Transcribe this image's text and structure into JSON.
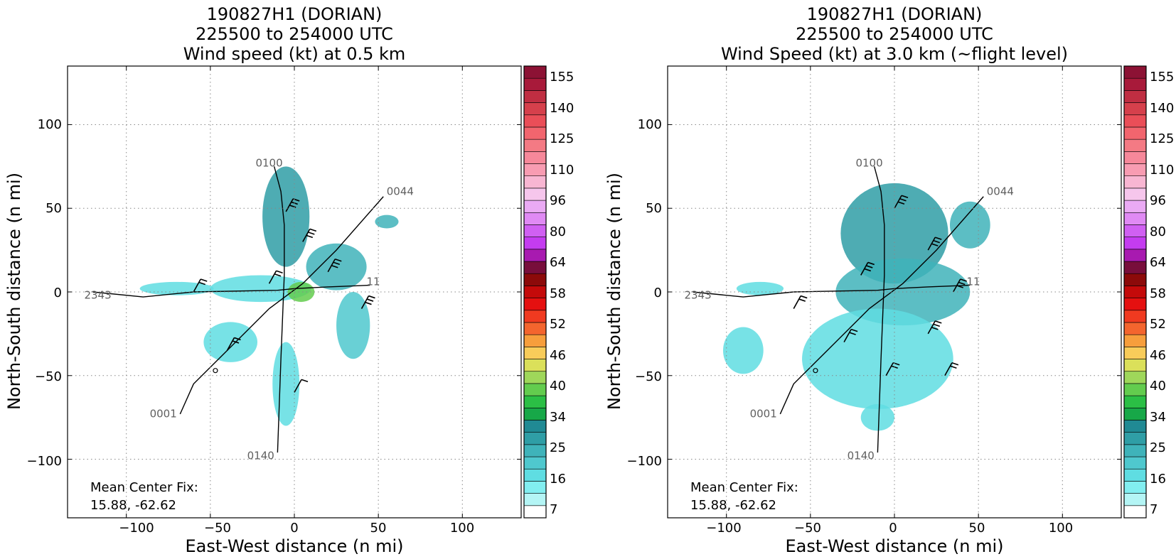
{
  "chart_data": [
    {
      "type": "heatmap",
      "title_lines": [
        "190827H1 (DORIAN)",
        "225500 to 254000 UTC",
        "Wind speed (kt) at 0.5 km"
      ],
      "xlabel": "East-West distance (n mi)",
      "ylabel": "North-South distance (n mi)",
      "xlim": [
        -135,
        135
      ],
      "ylim": [
        -135,
        135
      ],
      "xticks": [
        -100,
        -50,
        0,
        50,
        100
      ],
      "yticks": [
        -100,
        -50,
        0,
        50,
        100
      ],
      "xtick_labels": [
        "−100",
        "−50",
        "0",
        "50",
        "100"
      ],
      "ytick_labels": [
        "−100",
        "−50",
        "0",
        "50",
        "100"
      ],
      "grid": true,
      "annotation_lines": [
        "Mean Center Fix:",
        "15.88, -62.62"
      ],
      "colorbar_labels": [
        "155",
        "140",
        "125",
        "110",
        "96",
        "80",
        "64",
        "58",
        "52",
        "46",
        "40",
        "34",
        "25",
        "16",
        "7"
      ],
      "track_labels": [
        {
          "text": "0100",
          "x": -15,
          "y": 75
        },
        {
          "text": "0044",
          "x": 63,
          "y": 58
        },
        {
          "text": "2343",
          "x": -117,
          "y": -4
        },
        {
          "text": "0001",
          "x": -78,
          "y": -75
        },
        {
          "text": "0140",
          "x": -20,
          "y": -100
        },
        {
          "text": "11",
          "x": 47,
          "y": 4
        }
      ],
      "blobs": [
        {
          "x": -5,
          "y": 45,
          "rx": 14,
          "ry": 30,
          "level": 24
        },
        {
          "x": -20,
          "y": 2,
          "rx": 30,
          "ry": 8,
          "level": 14
        },
        {
          "x": -70,
          "y": 2,
          "rx": 22,
          "ry": 4,
          "level": 14
        },
        {
          "x": 25,
          "y": 15,
          "rx": 18,
          "ry": 14,
          "level": 22
        },
        {
          "x": 35,
          "y": -20,
          "rx": 10,
          "ry": 20,
          "level": 18
        },
        {
          "x": -38,
          "y": -30,
          "rx": 16,
          "ry": 12,
          "level": 13
        },
        {
          "x": -5,
          "y": -55,
          "rx": 8,
          "ry": 25,
          "level": 12
        },
        {
          "x": 55,
          "y": 42,
          "rx": 7,
          "ry": 4,
          "level": 22
        },
        {
          "x": 4,
          "y": 0,
          "rx": 8,
          "ry": 6,
          "level": 40
        }
      ],
      "barbs": [
        {
          "x": -5,
          "y": 48,
          "speed": 25
        },
        {
          "x": 5,
          "y": 30,
          "speed": 30
        },
        {
          "x": -15,
          "y": 5,
          "speed": 20
        },
        {
          "x": 20,
          "y": 12,
          "speed": 30
        },
        {
          "x": 40,
          "y": -10,
          "speed": 25
        },
        {
          "x": -40,
          "y": -35,
          "speed": 15
        },
        {
          "x": 0,
          "y": -60,
          "speed": 10
        },
        {
          "x": -60,
          "y": 0,
          "speed": 15
        }
      ]
    },
    {
      "type": "heatmap",
      "title_lines": [
        "190827H1 (DORIAN)",
        "225500 to 254000 UTC",
        "Wind Speed (kt) at 3.0 km (~flight level)"
      ],
      "xlabel": "East-West distance (n mi)",
      "ylabel": "North-South distance (n mi)",
      "xlim": [
        -135,
        135
      ],
      "ylim": [
        -135,
        135
      ],
      "xticks": [
        -100,
        -50,
        0,
        50,
        100
      ],
      "yticks": [
        -100,
        -50,
        0,
        50,
        100
      ],
      "xtick_labels": [
        "−100",
        "−50",
        "0",
        "50",
        "100"
      ],
      "ytick_labels": [
        "−100",
        "−50",
        "0",
        "50",
        "100"
      ],
      "grid": true,
      "annotation_lines": [
        "Mean Center Fix:",
        "15.88, -62.62"
      ],
      "colorbar_labels": [
        "155",
        "140",
        "125",
        "110",
        "96",
        "80",
        "64",
        "58",
        "52",
        "46",
        "40",
        "34",
        "25",
        "16",
        "7"
      ],
      "track_labels": [
        {
          "text": "0100",
          "x": -15,
          "y": 75
        },
        {
          "text": "0044",
          "x": 63,
          "y": 58
        },
        {
          "text": "2343",
          "x": -117,
          "y": -4
        },
        {
          "text": "0001",
          "x": -78,
          "y": -75
        },
        {
          "text": "0140",
          "x": -20,
          "y": -100
        },
        {
          "text": "11",
          "x": 47,
          "y": 4
        }
      ],
      "blobs": [
        {
          "x": 0,
          "y": 35,
          "rx": 32,
          "ry": 30,
          "level": 24
        },
        {
          "x": 5,
          "y": 0,
          "rx": 40,
          "ry": 20,
          "level": 20
        },
        {
          "x": -10,
          "y": -40,
          "rx": 45,
          "ry": 30,
          "level": 13
        },
        {
          "x": -90,
          "y": -35,
          "rx": 12,
          "ry": 14,
          "level": 11
        },
        {
          "x": -80,
          "y": 2,
          "rx": 14,
          "ry": 4,
          "level": 13
        },
        {
          "x": 45,
          "y": 40,
          "rx": 12,
          "ry": 14,
          "level": 21
        },
        {
          "x": -10,
          "y": -75,
          "rx": 10,
          "ry": 8,
          "level": 14
        }
      ],
      "barbs": [
        {
          "x": 0,
          "y": 50,
          "speed": 25
        },
        {
          "x": 20,
          "y": 25,
          "speed": 30
        },
        {
          "x": -20,
          "y": 10,
          "speed": 25
        },
        {
          "x": 35,
          "y": 0,
          "speed": 30
        },
        {
          "x": 20,
          "y": -25,
          "speed": 25
        },
        {
          "x": -30,
          "y": -30,
          "speed": 20
        },
        {
          "x": -5,
          "y": -50,
          "speed": 20
        },
        {
          "x": 30,
          "y": -50,
          "speed": 20
        },
        {
          "x": -60,
          "y": -10,
          "speed": 15
        }
      ]
    }
  ],
  "colorbar_colors": [
    "#ffffff",
    "#b4f5f5",
    "#82eef0",
    "#5fdde2",
    "#4fc8ce",
    "#3fb3ba",
    "#2f9ea6",
    "#208a94",
    "#17a848",
    "#2bbf45",
    "#63cc4e",
    "#9fd75a",
    "#dbe05a",
    "#f8cc5a",
    "#f79e3c",
    "#f4652e",
    "#f03a20",
    "#e51010",
    "#c40a0a",
    "#8c0a0a",
    "#780e3c",
    "#a81ab0",
    "#c43cf0",
    "#d060f2",
    "#e08af4",
    "#eaaaf4",
    "#f6c6ec",
    "#f8b6d2",
    "#f89cb2",
    "#f6889a",
    "#f47a84",
    "#f2656e",
    "#ea4e58",
    "#d6404c",
    "#c02e42",
    "#a81a3a",
    "#8c1234"
  ],
  "track_color": "#000000",
  "grid_color": "#888888"
}
